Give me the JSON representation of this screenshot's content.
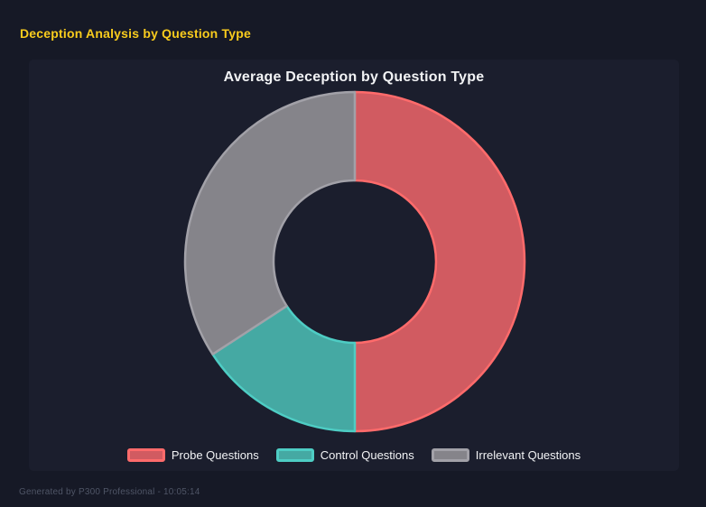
{
  "page": {
    "title": "Deception Analysis by Question Type"
  },
  "theme": {
    "page_bg": "#161926",
    "panel_bg": "#1b1e2d",
    "accent_yellow": "#f9cc1d",
    "text_light": "#f2f3f5",
    "footer_text": "#4f5566"
  },
  "chart_data": {
    "type": "pie",
    "variant": "doughnut",
    "title": "Average Deception by Question Type",
    "labels": [
      "Probe Questions",
      "Control Questions",
      "Irrelevant Questions"
    ],
    "values": [
      50,
      15.8,
      34.2
    ],
    "value_unit": "percent_of_total",
    "start_angle_deg": 0,
    "segment_angles_deg": [
      [
        0,
        180
      ],
      [
        180,
        236.9
      ],
      [
        236.9,
        360
      ]
    ],
    "colors": [
      "#d15b61",
      "#45a9a3",
      "#85848a"
    ],
    "border_colors": [
      "#ff6b6b",
      "#4ecdc4",
      "#a2a1a8"
    ],
    "border_width": 2.5,
    "cutout_percent": 48,
    "outer_radius_px": 188,
    "inner_radius_px": 90,
    "legend_position": "bottom",
    "grid": false
  },
  "footer": {
    "text": "Generated by P300 Professional - 10:05:14"
  }
}
